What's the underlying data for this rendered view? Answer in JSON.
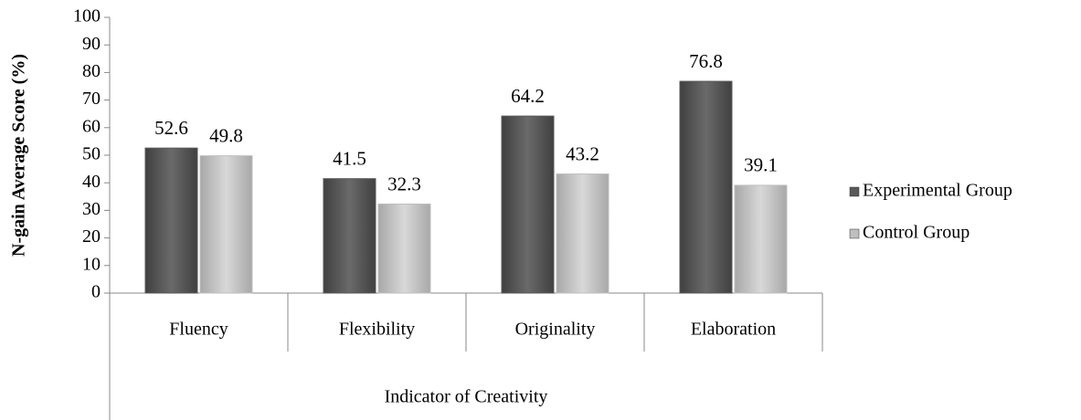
{
  "chart_data": {
    "type": "bar",
    "y_label": "N-gain Average Score  (%)",
    "x_label": "Indicator of Creativity",
    "categories": [
      "Fluency",
      "Flexibility",
      "Originality",
      "Elaboration"
    ],
    "series": [
      {
        "name": "Experimental Group",
        "color": "#595959",
        "values": [
          52.6,
          41.5,
          64.2,
          76.8
        ]
      },
      {
        "name": "Control Group",
        "color": "#bfbfbf",
        "values": [
          49.8,
          32.3,
          43.2,
          39.1
        ]
      }
    ],
    "ylim": [
      0,
      100
    ],
    "yticks": [
      0,
      10,
      20,
      30,
      40,
      50,
      60,
      70,
      80,
      90,
      100
    ],
    "legend": "right"
  }
}
